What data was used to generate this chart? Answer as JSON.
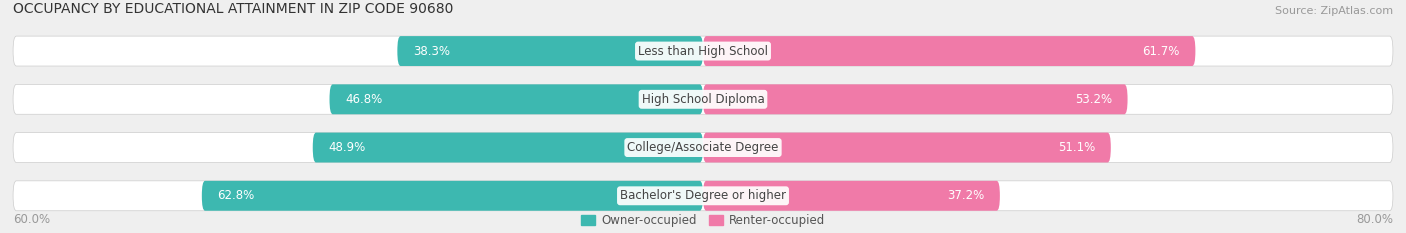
{
  "title": "OCCUPANCY BY EDUCATIONAL ATTAINMENT IN ZIP CODE 90680",
  "source": "Source: ZipAtlas.com",
  "categories": [
    "Less than High School",
    "High School Diploma",
    "College/Associate Degree",
    "Bachelor's Degree or higher"
  ],
  "owner_pct": [
    38.3,
    46.8,
    48.9,
    62.8
  ],
  "renter_pct": [
    61.7,
    53.2,
    51.1,
    37.2
  ],
  "owner_color": "#3db8b0",
  "renter_color": "#f07aa8",
  "renter_color_light": "#f9c0d5",
  "background_color": "#efefef",
  "bar_bg_color": "#ffffff",
  "x_left_label": "60.0%",
  "x_right_label": "80.0%",
  "owner_label": "Owner-occupied",
  "renter_label": "Renter-occupied",
  "title_fontsize": 10,
  "source_fontsize": 8,
  "label_fontsize": 8.5,
  "cat_fontsize": 8.5,
  "pct_fontsize": 8.5,
  "bar_height": 0.62,
  "figsize": [
    14.06,
    2.33
  ],
  "dpi": 100,
  "xlim_left": -68,
  "xlim_right": 68,
  "total_bar_width": 100
}
